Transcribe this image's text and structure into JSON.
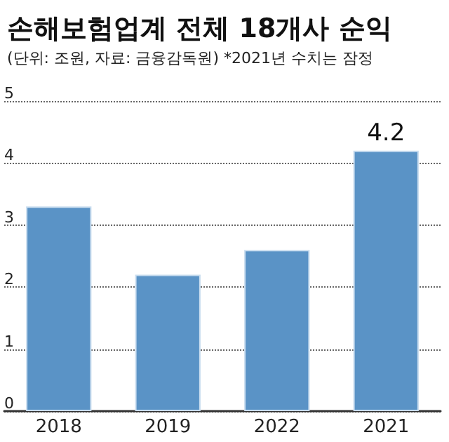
{
  "chart_data": {
    "type": "bar",
    "title": "손해보험업계 전체 18개사 순익",
    "subtitle": "(단위: 조원, 자료: 금융감독원) *2021년 수치는 잠정",
    "categories": [
      "2018",
      "2019",
      "2022",
      "2021"
    ],
    "values": [
      3.3,
      2.2,
      2.6,
      4.2
    ],
    "value_labels": [
      null,
      null,
      null,
      "4.2"
    ],
    "color": "#5a93c6",
    "ylim": [
      0,
      5
    ],
    "yticks": [
      0,
      1,
      2,
      3,
      4,
      5
    ],
    "grid": "y"
  }
}
